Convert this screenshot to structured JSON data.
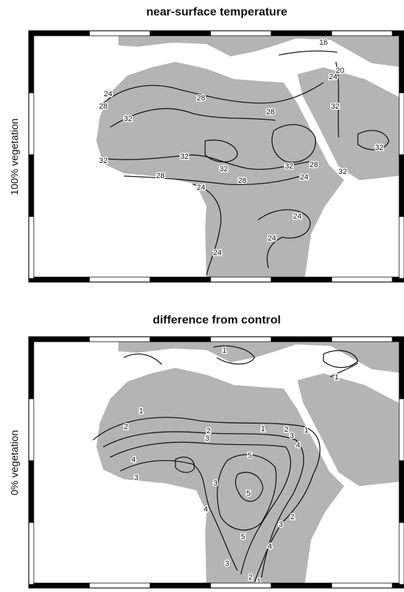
{
  "panels": [
    {
      "title": "near-surface temperature",
      "side_label": "100% vegetation",
      "contour_labels": [
        16,
        20,
        24,
        24,
        28,
        28,
        32,
        28,
        32,
        32,
        32,
        32,
        32,
        28,
        28,
        24,
        32,
        28,
        24,
        32,
        24,
        24,
        24
      ]
    },
    {
      "title": "difference from control",
      "side_label": "0% vegetation",
      "contour_labels": [
        1,
        1,
        1,
        2,
        2,
        3,
        1,
        4,
        3,
        5,
        3,
        5,
        4,
        2,
        3,
        1,
        4,
        2,
        3,
        5,
        4,
        3,
        2,
        1
      ]
    }
  ]
}
